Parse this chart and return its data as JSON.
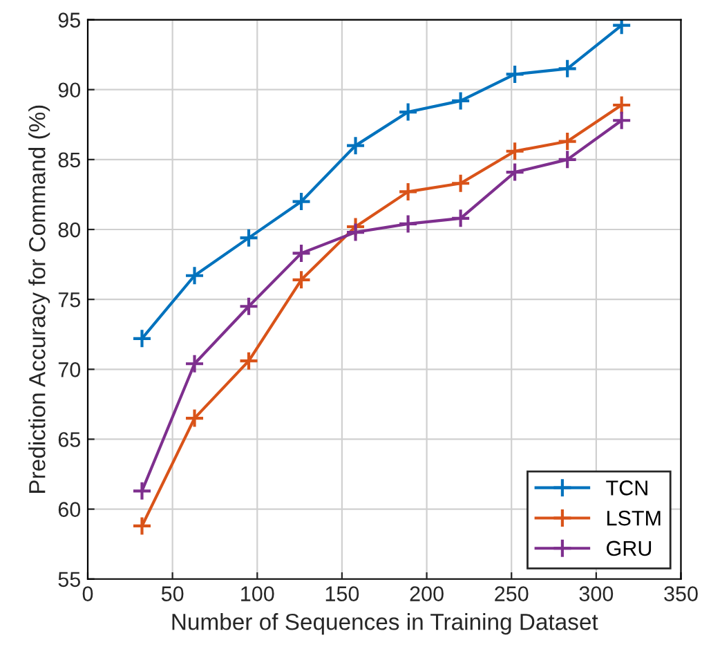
{
  "chart_data": {
    "type": "line",
    "xlabel": "Number of Sequences in Training Dataset",
    "ylabel": "Prediction Accuracy for Command (%)",
    "x": [
      32,
      63,
      95,
      126,
      158,
      189,
      220,
      252,
      283,
      315
    ],
    "series": [
      {
        "name": "TCN",
        "color": "#0072bd",
        "values": [
          72.2,
          76.7,
          79.4,
          82.0,
          86.0,
          88.4,
          89.2,
          91.1,
          91.5,
          94.6
        ]
      },
      {
        "name": "LSTM",
        "color": "#d95319",
        "values": [
          58.8,
          66.5,
          70.6,
          76.4,
          80.2,
          82.7,
          83.3,
          85.6,
          86.3,
          88.9
        ]
      },
      {
        "name": "GRU",
        "color": "#7e2f8e",
        "values": [
          61.3,
          70.4,
          74.5,
          78.3,
          79.8,
          80.4,
          80.8,
          84.1,
          85.0,
          87.8
        ]
      }
    ],
    "xlim": [
      0,
      350
    ],
    "xticks": [
      0,
      50,
      100,
      150,
      200,
      250,
      300,
      350
    ],
    "ylim": [
      55,
      95
    ],
    "yticks": [
      55,
      60,
      65,
      70,
      75,
      80,
      85,
      90,
      95
    ],
    "grid": true,
    "legend": "bottom right",
    "marker": "cross",
    "line_style": "solid"
  }
}
